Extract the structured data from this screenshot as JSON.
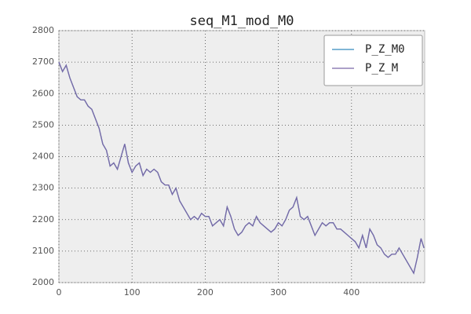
{
  "chart_data": {
    "type": "line",
    "title": "seq_M1_mod_M0",
    "x": [
      0,
      5,
      10,
      15,
      20,
      25,
      30,
      35,
      40,
      45,
      50,
      55,
      60,
      65,
      70,
      75,
      80,
      85,
      90,
      95,
      100,
      105,
      110,
      115,
      120,
      125,
      130,
      135,
      140,
      145,
      150,
      155,
      160,
      165,
      170,
      175,
      180,
      185,
      190,
      195,
      200,
      205,
      210,
      215,
      220,
      225,
      230,
      235,
      240,
      245,
      250,
      255,
      260,
      265,
      270,
      275,
      280,
      285,
      290,
      295,
      300,
      305,
      310,
      315,
      320,
      325,
      330,
      335,
      340,
      345,
      350,
      355,
      360,
      365,
      370,
      375,
      380,
      385,
      390,
      395,
      400,
      405,
      410,
      415,
      420,
      425,
      430,
      435,
      440,
      445,
      450,
      455,
      460,
      465,
      470,
      475,
      480,
      485,
      490,
      495,
      499
    ],
    "series": [
      {
        "name": "P_Z_M0",
        "color": "#348abd",
        "values": [
          2700,
          2670,
          2690,
          2650,
          2620,
          2590,
          2580,
          2580,
          2560,
          2550,
          2520,
          2490,
          2440,
          2420,
          2370,
          2380,
          2360,
          2400,
          2440,
          2380,
          2350,
          2370,
          2380,
          2340,
          2360,
          2350,
          2360,
          2350,
          2320,
          2310,
          2310,
          2280,
          2300,
          2260,
          2240,
          2220,
          2200,
          2210,
          2200,
          2220,
          2210,
          2210,
          2180,
          2190,
          2200,
          2180,
          2240,
          2210,
          2170,
          2150,
          2160,
          2180,
          2190,
          2180,
          2210,
          2190,
          2180,
          2170,
          2160,
          2170,
          2190,
          2180,
          2200,
          2230,
          2240,
          2270,
          2210,
          2200,
          2210,
          2180,
          2150,
          2170,
          2190,
          2180,
          2190,
          2190,
          2170,
          2170,
          2160,
          2150,
          2140,
          2130,
          2110,
          2150,
          2110,
          2170,
          2150,
          2120,
          2110,
          2090,
          2080,
          2090,
          2090,
          2110,
          2090,
          2070,
          2050,
          2030,
          2080,
          2140,
          2110
        ]
      },
      {
        "name": "P_Z_M",
        "color": "#7a68a6",
        "values": [
          2700,
          2670,
          2690,
          2650,
          2620,
          2590,
          2580,
          2580,
          2560,
          2550,
          2520,
          2490,
          2440,
          2420,
          2370,
          2380,
          2360,
          2400,
          2440,
          2380,
          2350,
          2370,
          2380,
          2340,
          2360,
          2350,
          2360,
          2350,
          2320,
          2310,
          2310,
          2280,
          2300,
          2260,
          2240,
          2220,
          2200,
          2210,
          2200,
          2220,
          2210,
          2210,
          2180,
          2190,
          2200,
          2180,
          2240,
          2210,
          2170,
          2150,
          2160,
          2180,
          2190,
          2180,
          2210,
          2190,
          2180,
          2170,
          2160,
          2170,
          2190,
          2180,
          2200,
          2230,
          2240,
          2270,
          2210,
          2200,
          2210,
          2180,
          2150,
          2170,
          2190,
          2180,
          2190,
          2190,
          2170,
          2170,
          2160,
          2150,
          2140,
          2130,
          2110,
          2150,
          2110,
          2170,
          2150,
          2120,
          2110,
          2090,
          2080,
          2090,
          2090,
          2110,
          2090,
          2070,
          2050,
          2030,
          2080,
          2140,
          2110
        ]
      }
    ],
    "xlim": [
      0,
      500
    ],
    "xticks": [
      0,
      100,
      200,
      300,
      400
    ],
    "ylim": [
      2000,
      2800
    ],
    "yticks": [
      2000,
      2100,
      2200,
      2300,
      2400,
      2500,
      2600,
      2700,
      2800
    ],
    "grid": true,
    "legend": "upper right"
  }
}
